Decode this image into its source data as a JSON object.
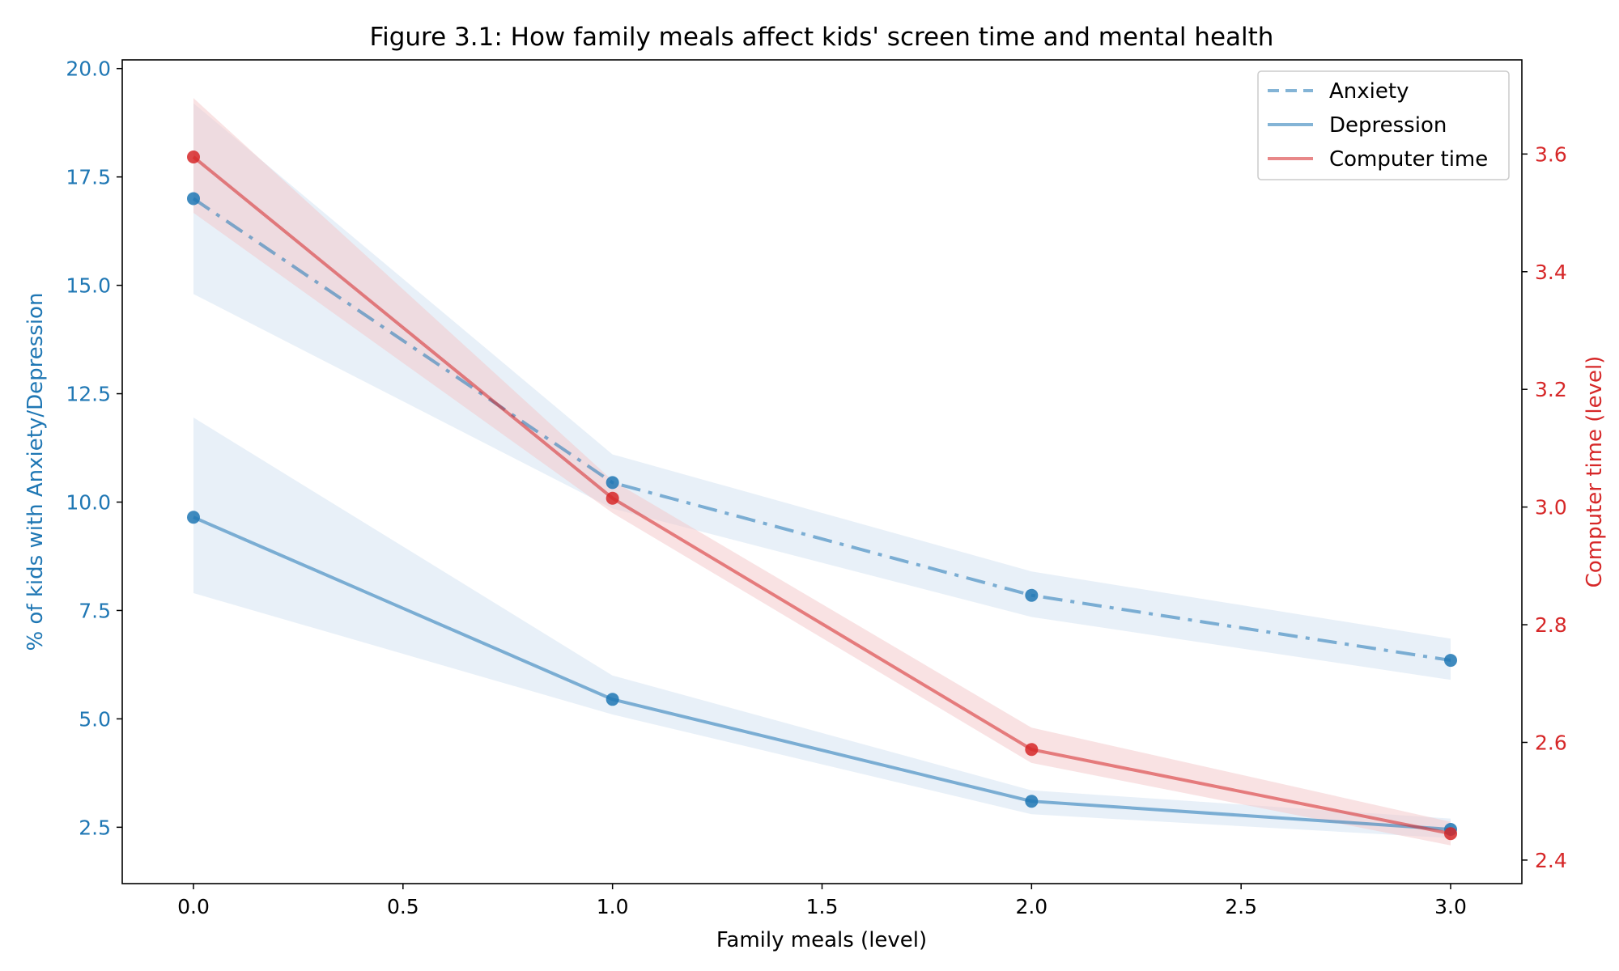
{
  "chart_data": {
    "type": "line",
    "title": "Figure 3.1: How family meals affect kids' screen time and mental health",
    "xlabel": "Family meals (level)",
    "ylabel_left": "% of kids with Anxiety/Depression",
    "ylabel_right": "Computer time (level)",
    "xlim": [
      -0.17,
      3.17
    ],
    "ylim_left": [
      1.2,
      20.2
    ],
    "ylim_right": [
      2.36,
      3.76
    ],
    "x_ticks": [
      "0.0",
      "0.5",
      "1.0",
      "1.5",
      "2.0",
      "2.5",
      "3.0"
    ],
    "left_ticks": [
      "2.5",
      "5.0",
      "7.5",
      "10.0",
      "12.5",
      "15.0",
      "17.5",
      "20.0"
    ],
    "right_ticks": [
      "2.4",
      "2.6",
      "2.8",
      "3.0",
      "3.2",
      "3.4",
      "3.6"
    ],
    "grid": false,
    "legend_position": "top-right",
    "x": [
      0,
      1,
      2,
      3
    ],
    "series": [
      {
        "name": "Anxiety",
        "axis": "left",
        "style": "dashdot",
        "color": "#1f77b4",
        "values": [
          17.0,
          10.45,
          7.85,
          6.35
        ],
        "ci_low": [
          14.8,
          9.85,
          7.35,
          5.9
        ],
        "ci_high": [
          19.2,
          11.1,
          8.4,
          6.85
        ]
      },
      {
        "name": "Depression",
        "axis": "left",
        "style": "solid",
        "color": "#1f77b4",
        "values": [
          9.65,
          5.45,
          3.1,
          2.45
        ],
        "ci_low": [
          7.9,
          5.1,
          2.8,
          2.25
        ],
        "ci_high": [
          11.95,
          6.0,
          3.35,
          2.7
        ]
      },
      {
        "name": "Computer time",
        "axis": "right",
        "style": "solid",
        "color": "#d62728",
        "values": [
          3.595,
          3.015,
          2.588,
          2.445
        ],
        "ci_low": [
          3.5,
          2.99,
          2.565,
          2.425
        ],
        "ci_high": [
          3.695,
          3.045,
          2.625,
          2.465
        ]
      }
    ],
    "colors": {
      "left_axis": "#1f77b4",
      "right_axis": "#d62728",
      "blue_band": "#dce8f5",
      "red_band": "#f4c5c8"
    }
  }
}
